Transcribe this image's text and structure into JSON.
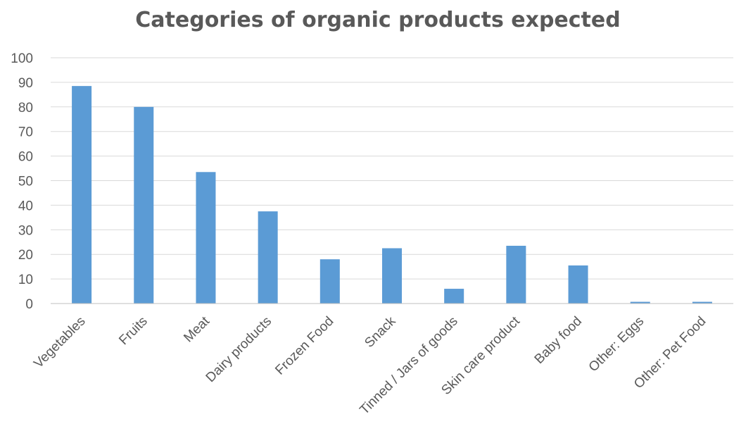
{
  "chart_data": {
    "type": "bar",
    "title": "Categories of organic products expected",
    "xlabel": "",
    "ylabel": "",
    "ylim": [
      0,
      100
    ],
    "yticks": [
      0,
      10,
      20,
      30,
      40,
      50,
      60,
      70,
      80,
      90,
      100
    ],
    "grid": true,
    "legend": "none",
    "bar_color": "#5b9bd5",
    "categories": [
      "Vegetables",
      "Fruits",
      "Meat",
      "Dairy products",
      "Frozen Food",
      "Snack",
      "Tinned / Jars of goods",
      "Skin care product",
      "Baby food",
      "Other: Eggs",
      "Other: Pet Food"
    ],
    "values": [
      88.5,
      80,
      53.5,
      37.5,
      18,
      22.5,
      6,
      23.5,
      15.5,
      0.7,
      0.7
    ]
  }
}
